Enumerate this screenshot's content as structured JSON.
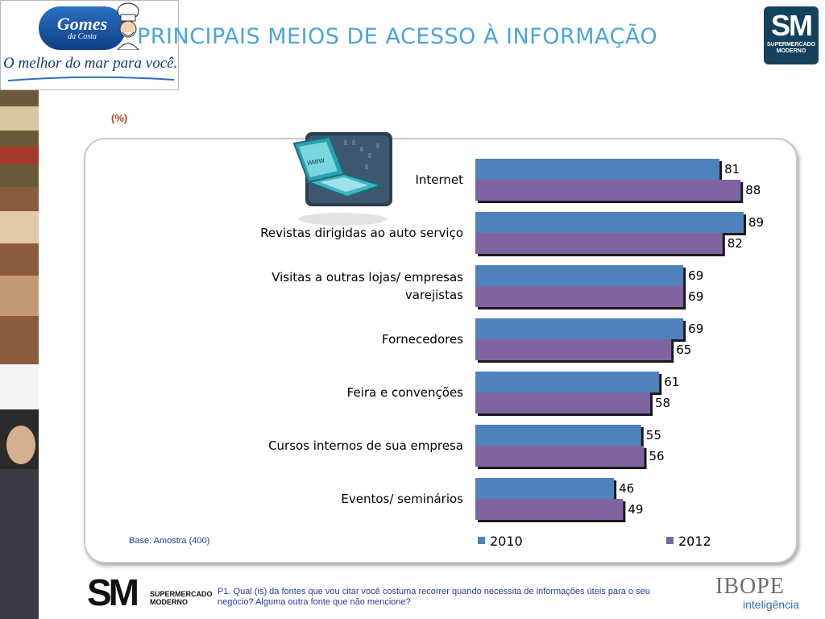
{
  "header": {
    "title": "PRINCIPAIS MEIOS DE ACESSO À INFORMAÇÃO",
    "brand": {
      "name": "Gomes",
      "sub": "da Costa",
      "slogan": "O melhor do mar para você."
    },
    "sm_logo": {
      "mark": "SM",
      "sub_line1": "SUPERMERCADO",
      "sub_line2": "MODERNO"
    }
  },
  "unit_label": "(%)",
  "base_note": "Base: Amostra (400)",
  "footer": {
    "sm_mark": "SM",
    "sm_sub_line1": "SUPERMERCADO",
    "sm_sub_line2": "MODERNO",
    "question": "P1. Qual (is) da  fontes  que vou citar você costuma recorrer quando necessita de informações úteis para o seu negócio?  Alguma outra fonte que não mencione?",
    "ibope_name": "IBOPE",
    "ibope_sub": "inteligência"
  },
  "colors": {
    "series_2010": "#4f81bd",
    "series_2012": "#8064a2",
    "title": "#4aa6d8"
  },
  "icons": {
    "laptop": "laptop-www-icon",
    "chef": "chef-icon"
  },
  "chart_data": {
    "type": "bar",
    "orientation": "horizontal",
    "categories": [
      [
        "Internet"
      ],
      [
        "Revistas dirigidas ao auto serviço"
      ],
      [
        "Visitas a outras lojas/ empresas",
        "varejistas"
      ],
      [
        "Fornecedores"
      ],
      [
        "Feira e convenções"
      ],
      [
        "Cursos internos de sua empresa"
      ],
      [
        "Eventos/ seminários"
      ]
    ],
    "series": [
      {
        "name": "2010",
        "values": [
          81,
          89,
          69,
          69,
          61,
          55,
          46
        ]
      },
      {
        "name": "2012",
        "values": [
          88,
          82,
          69,
          65,
          58,
          56,
          49
        ]
      }
    ],
    "xlim": [
      0,
      90
    ],
    "grid": false,
    "legend": "bottom"
  }
}
